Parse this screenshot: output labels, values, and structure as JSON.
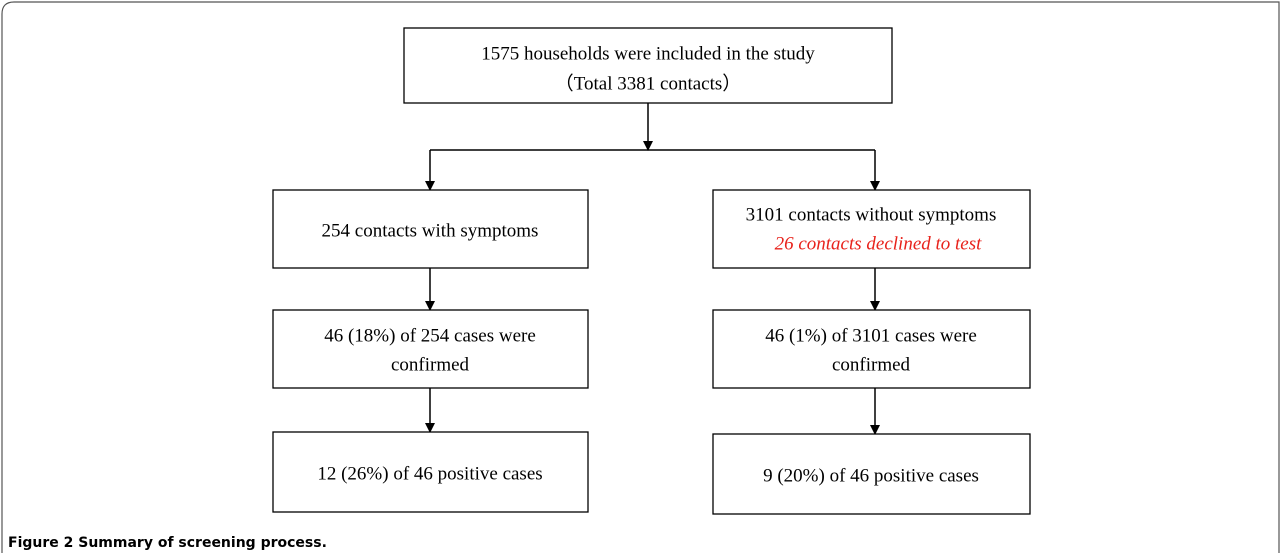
{
  "nodes": [
    {
      "lines": [
        "1575 households were included in the study",
        "（Total 3381 contacts）"
      ]
    },
    {
      "lines": [
        "254 contacts with symptoms"
      ]
    },
    {
      "lines": [
        "3101 contacts without symptoms",
        "26 contacts declined to test"
      ]
    },
    {
      "lines": [
        "46 (18%) of 254 cases were",
        "confirmed"
      ]
    },
    {
      "lines": [
        "46 (1%) of 3101 cases were",
        "confirmed"
      ]
    },
    {
      "lines": [
        "12 (26%) of 46 positive cases"
      ]
    },
    {
      "lines": [
        "9 (20%) of 46 positive cases"
      ]
    }
  ],
  "caption": {
    "label": "Figure 2",
    "text": "Summary of screening process."
  }
}
